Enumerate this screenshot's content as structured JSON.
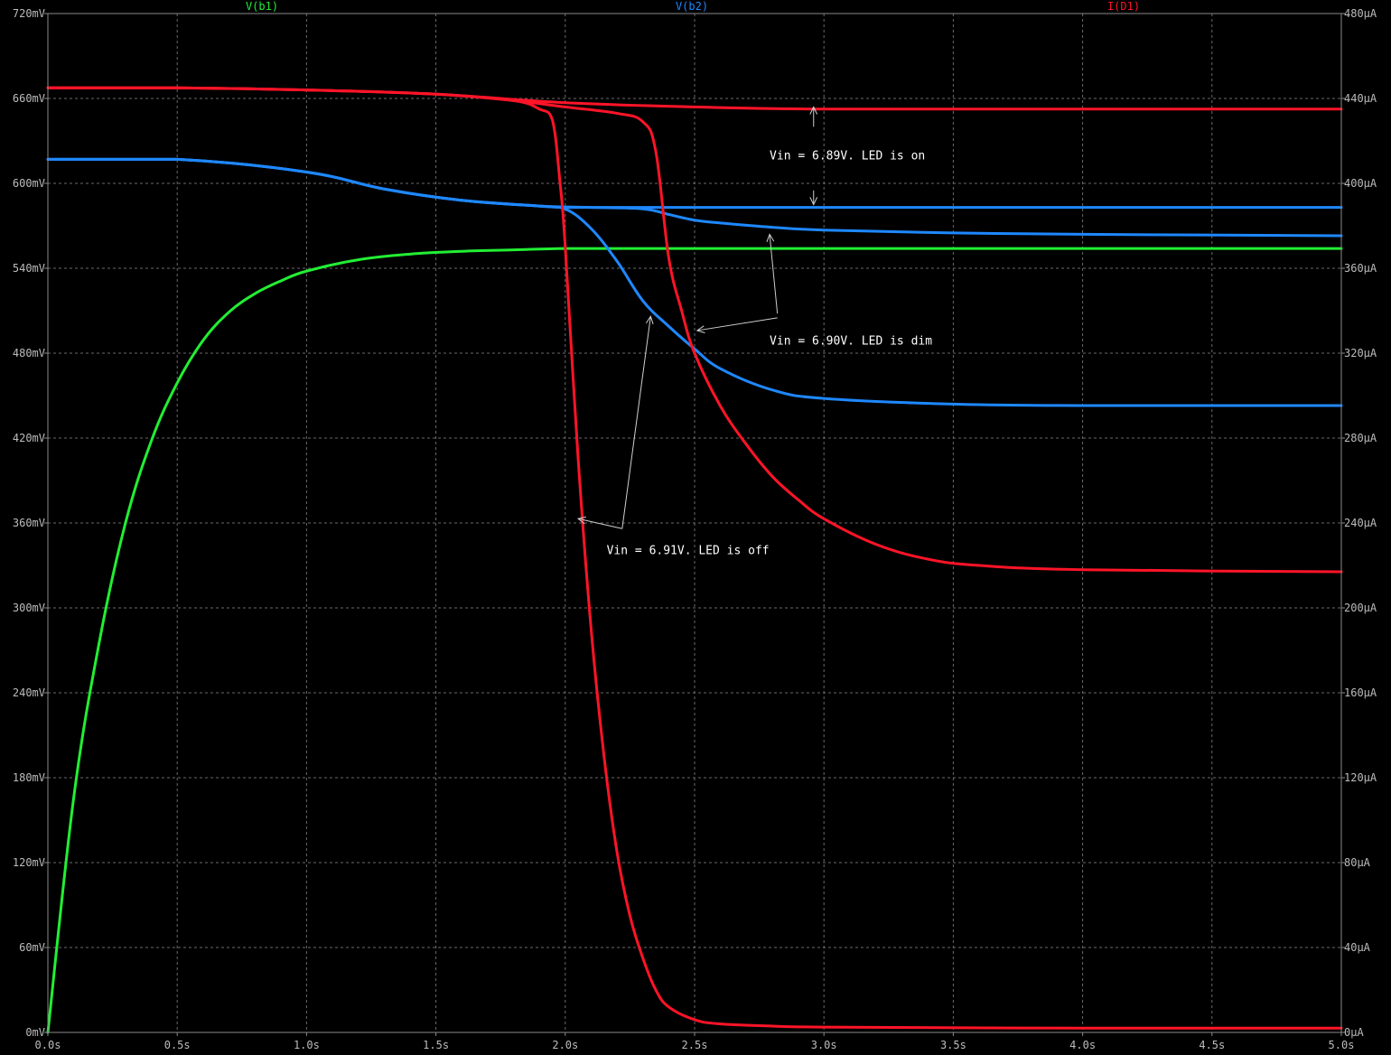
{
  "chart_data": {
    "type": "line",
    "xlabel": "",
    "ylabel_left": "",
    "ylabel_right": "",
    "xlim": [
      0,
      5
    ],
    "ylim_left": [
      0,
      720
    ],
    "ylim_right": [
      0,
      480
    ],
    "grid": true,
    "background": "#000000",
    "x_ticks": [
      "0.0s",
      "0.5s",
      "1.0s",
      "1.5s",
      "2.0s",
      "2.5s",
      "3.0s",
      "3.5s",
      "4.0s",
      "4.5s",
      "5.0s"
    ],
    "y_left_ticks": [
      "0mV",
      "60mV",
      "120mV",
      "180mV",
      "240mV",
      "300mV",
      "360mV",
      "420mV",
      "480mV",
      "540mV",
      "600mV",
      "660mV",
      "720mV"
    ],
    "y_right_ticks": [
      "0µA",
      "40µA",
      "80µA",
      "120µA",
      "160µA",
      "200µA",
      "240µA",
      "280µA",
      "320µA",
      "360µA",
      "400µA",
      "440µA",
      "480µA"
    ],
    "legend": [
      {
        "label": "V(b1)",
        "color": "#22ee33"
      },
      {
        "label": "V(b2)",
        "color": "#1e88ff"
      },
      {
        "label": "I(D1)",
        "color": "#ff1428"
      }
    ],
    "series": [
      {
        "name": "V(b1)",
        "axis": "left",
        "color": "#22ee33",
        "case": "all",
        "x": [
          0,
          0.1,
          0.2,
          0.3,
          0.4,
          0.5,
          0.6,
          0.7,
          0.8,
          0.9,
          1.0,
          1.2,
          1.4,
          1.6,
          1.8,
          2.0,
          2.3,
          2.6,
          3.0,
          4.0,
          5.0
        ],
        "y": [
          0,
          166,
          277,
          360,
          418,
          459,
          489,
          509,
          522,
          531,
          538,
          546,
          550,
          552,
          553,
          554,
          554,
          554,
          554,
          554,
          554
        ]
      },
      {
        "name": "V(b2)",
        "axis": "left",
        "color": "#1e88ff",
        "case": "6.89V",
        "x": [
          0,
          0.5,
          1.0,
          1.3,
          1.6,
          1.9,
          2.0,
          2.2,
          2.4,
          2.6,
          3.0,
          4.0,
          5.0
        ],
        "y": [
          617,
          617,
          608,
          596,
          588,
          584,
          583,
          583,
          583,
          583,
          583,
          583,
          583
        ]
      },
      {
        "name": "V(b2)",
        "axis": "left",
        "color": "#1e88ff",
        "case": "6.90V",
        "x": [
          0,
          0.5,
          1.0,
          1.3,
          1.6,
          1.9,
          2.1,
          2.3,
          2.4,
          2.5,
          2.6,
          2.8,
          3.0,
          3.5,
          4.0,
          5.0
        ],
        "y": [
          617,
          617,
          608,
          596,
          588,
          584,
          583,
          582,
          578,
          574,
          572,
          569,
          567,
          565,
          564,
          563
        ]
      },
      {
        "name": "V(b2)",
        "axis": "left",
        "color": "#1e88ff",
        "case": "6.91V",
        "x": [
          0,
          0.5,
          1.0,
          1.3,
          1.6,
          1.9,
          2.0,
          2.1,
          2.2,
          2.3,
          2.4,
          2.5,
          2.6,
          2.8,
          3.0,
          3.5,
          4.0,
          5.0
        ],
        "y": [
          617,
          617,
          608,
          596,
          588,
          584,
          582,
          568,
          545,
          517,
          499,
          483,
          469,
          454,
          448,
          444,
          443,
          443
        ]
      },
      {
        "name": "I(D1)",
        "axis": "right",
        "color": "#ff1428",
        "case": "6.89V",
        "x": [
          0,
          0.5,
          1.0,
          1.5,
          2.0,
          2.5,
          3.0,
          4.0,
          5.0
        ],
        "y": [
          445,
          445,
          444,
          442,
          438,
          436,
          435,
          435,
          435
        ]
      },
      {
        "name": "I(D1)",
        "axis": "right",
        "color": "#ff1428",
        "case": "6.90V",
        "x": [
          0,
          0.5,
          1.0,
          1.5,
          1.8,
          2.0,
          2.2,
          2.3,
          2.35,
          2.4,
          2.45,
          2.5,
          2.6,
          2.7,
          2.8,
          2.9,
          3.0,
          3.2,
          3.4,
          3.6,
          4.0,
          5.0
        ],
        "y": [
          445,
          445,
          444,
          442,
          439,
          436,
          433,
          429,
          415,
          365,
          340,
          320,
          295,
          277,
          262,
          251,
          242,
          230,
          223,
          220,
          218,
          217
        ]
      },
      {
        "name": "I(D1)",
        "axis": "right",
        "color": "#ff1428",
        "case": "6.91V",
        "x": [
          0,
          0.5,
          1.0,
          1.5,
          1.8,
          1.9,
          1.95,
          1.98,
          2.0,
          2.05,
          2.1,
          2.15,
          2.2,
          2.25,
          2.3,
          2.35,
          2.4,
          2.5,
          2.6,
          2.8,
          3.0,
          4.0,
          5.0
        ],
        "y": [
          445,
          445,
          444,
          442,
          439,
          435,
          430,
          400,
          370,
          270,
          190,
          130,
          85,
          55,
          35,
          20,
          12,
          6,
          4,
          3,
          2.5,
          2,
          2
        ]
      }
    ],
    "annotations": [
      {
        "text": "Vin = 6.89V. LED is on"
      },
      {
        "text": "Vin = 6.90V. LED is dim"
      },
      {
        "text": "Vin = 6.91V. LED is off"
      }
    ]
  }
}
